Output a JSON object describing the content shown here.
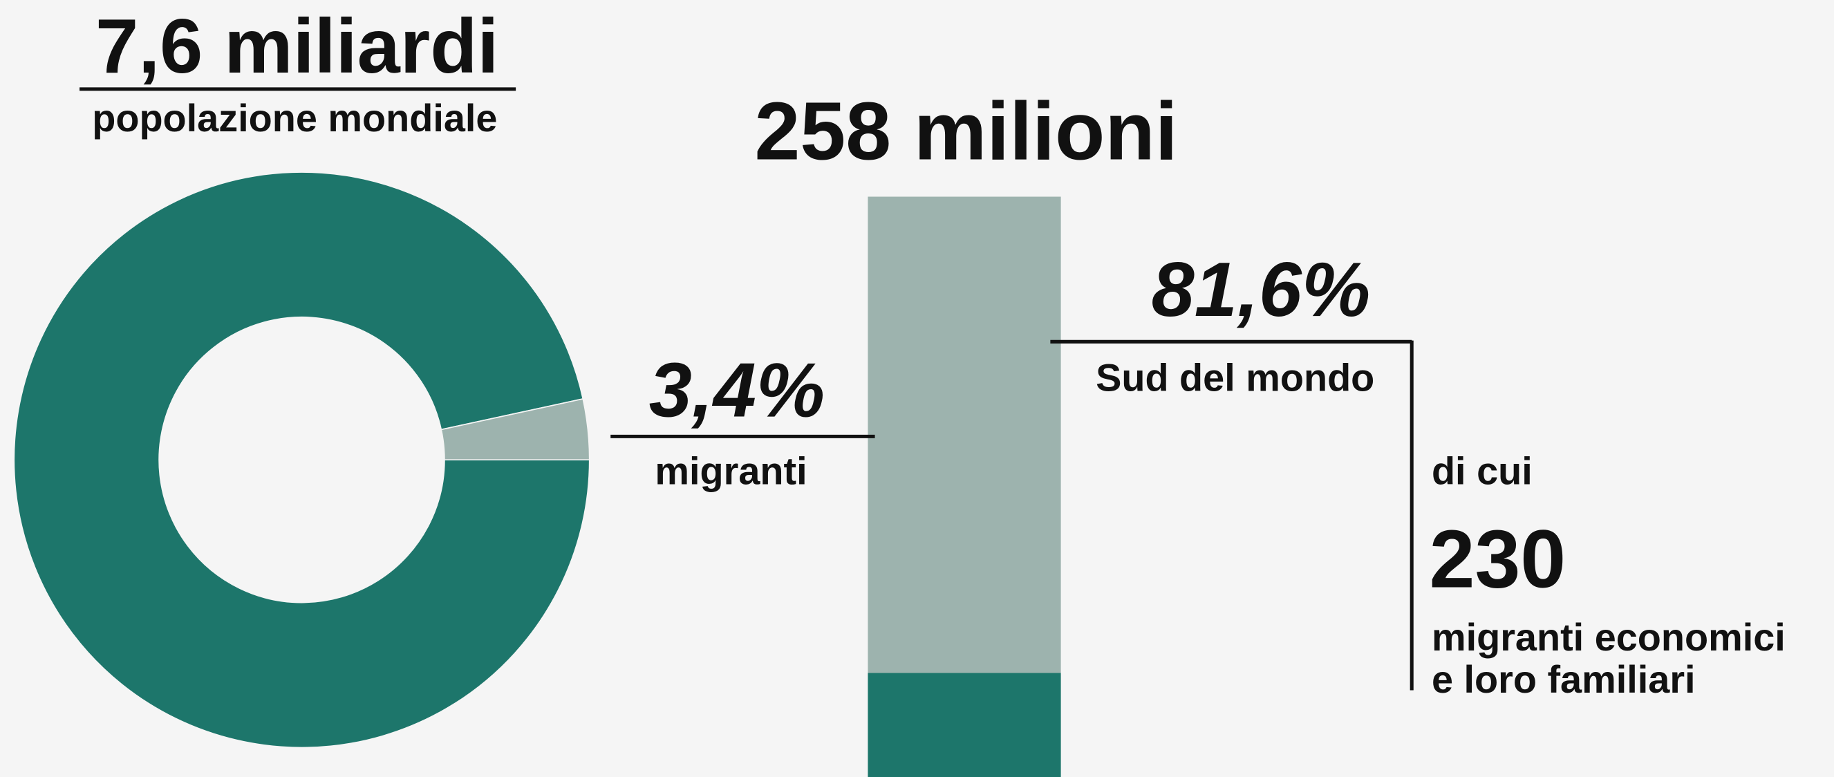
{
  "chart_data": [
    {
      "type": "pie",
      "title": "7,6 miliardi",
      "subtitle": "popolazione mondiale",
      "categories": [
        "migranti",
        null
      ],
      "values": [
        3.4,
        96.6
      ],
      "value_labels": [
        "3,4%",
        null
      ],
      "colors": [
        "#9db3ae",
        "#1d766b"
      ]
    },
    {
      "type": "stacked_bar",
      "title": "258 milioni",
      "categories": [
        "Sud del mondo",
        null
      ],
      "values": [
        81.6,
        18.4
      ],
      "value_labels": [
        "81,6%",
        null
      ],
      "colors": [
        "#9db3ae",
        "#1d766b"
      ],
      "annotation": {
        "intro": "di cui",
        "value": "230",
        "lines": [
          "migranti economici",
          "e loro familiari"
        ]
      }
    }
  ]
}
